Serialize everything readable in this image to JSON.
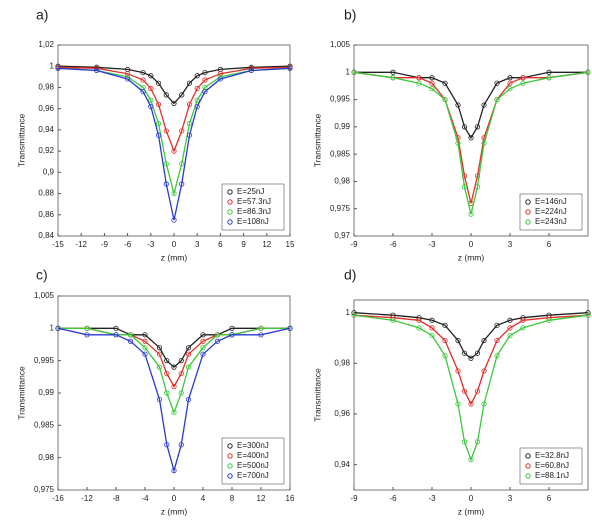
{
  "chart_data": [
    {
      "type": "line",
      "title": "a)",
      "x_label": "z (mm)",
      "y_label": "Transmittance",
      "x": [
        -15,
        -10,
        -6,
        -4,
        -3,
        -2,
        -1,
        0,
        1,
        2,
        3,
        4,
        6,
        10,
        15
      ],
      "xlim": [
        -15,
        15
      ],
      "xticks": [
        -15,
        -12,
        -9,
        -6,
        -3,
        0,
        3,
        6,
        9,
        12,
        15
      ],
      "ylim": [
        0.84,
        1.02
      ],
      "yticks": [
        {
          "value": 0.84,
          "label": "0,84"
        },
        {
          "value": 0.86,
          "label": "0,86"
        },
        {
          "value": 0.88,
          "label": "0,88"
        },
        {
          "value": 0.9,
          "label": "0,9"
        },
        {
          "value": 0.92,
          "label": "0,92"
        },
        {
          "value": 0.94,
          "label": "0,94"
        },
        {
          "value": 0.96,
          "label": "0,96"
        },
        {
          "value": 0.98,
          "label": "0,98"
        },
        1,
        {
          "value": 1.02,
          "label": "1,02"
        }
      ],
      "legend": "lower right",
      "series": [
        {
          "name": "E=25nJ",
          "color": "#222222",
          "values": [
            1,
            0.999,
            0.997,
            0.994,
            0.991,
            0.984,
            0.973,
            0.965,
            0.973,
            0.984,
            0.991,
            0.994,
            0.997,
            0.999,
            1
          ]
        },
        {
          "name": "E=57.3nJ",
          "color": "#e0302a",
          "values": [
            0.999,
            0.998,
            0.993,
            0.987,
            0.979,
            0.964,
            0.939,
            0.92,
            0.939,
            0.964,
            0.979,
            0.987,
            0.993,
            0.998,
            0.999
          ]
        },
        {
          "name": "E=86.3nJ",
          "color": "#3cc83c",
          "values": [
            0.998,
            0.996,
            0.99,
            0.98,
            0.968,
            0.946,
            0.908,
            0.88,
            0.908,
            0.946,
            0.968,
            0.98,
            0.99,
            0.996,
            0.998
          ]
        },
        {
          "name": "E=108nJ",
          "color": "#2a3ad0",
          "values": [
            0.998,
            0.996,
            0.988,
            0.976,
            0.962,
            0.935,
            0.889,
            0.855,
            0.889,
            0.935,
            0.962,
            0.976,
            0.988,
            0.996,
            0.998
          ]
        }
      ]
    },
    {
      "type": "line",
      "title": "b)",
      "x_label": "z (mm)",
      "y_label": "Transmittance",
      "x": [
        -9,
        -6,
        -4,
        -3,
        -2,
        -1,
        -0.5,
        0,
        0.5,
        1,
        2,
        3,
        4,
        6,
        9
      ],
      "xlim": [
        -9,
        9
      ],
      "xticks": [
        -9,
        -6,
        -3,
        0,
        3,
        6
      ],
      "ylim": [
        0.97,
        1.005
      ],
      "yticks": [
        {
          "value": 0.97,
          "label": "0,97"
        },
        {
          "value": 0.975,
          "label": "0,975"
        },
        {
          "value": 0.98,
          "label": "0,98"
        },
        {
          "value": 0.985,
          "label": "0,985"
        },
        {
          "value": 0.99,
          "label": "0,99"
        },
        {
          "value": 0.995,
          "label": "0,995"
        },
        1,
        {
          "value": 1.005,
          "label": "1,005"
        }
      ],
      "legend": "lower right",
      "series": [
        {
          "name": "E=146nJ",
          "color": "#222222",
          "values": [
            1,
            1,
            0.999,
            0.999,
            0.998,
            0.994,
            0.99,
            0.988,
            0.99,
            0.994,
            0.998,
            0.999,
            0.999,
            1,
            1
          ]
        },
        {
          "name": "E=224nJ",
          "color": "#e0302a",
          "values": [
            1,
            0.999,
            0.999,
            0.998,
            0.995,
            0.988,
            0.981,
            0.976,
            0.981,
            0.988,
            0.995,
            0.998,
            0.999,
            0.999,
            1
          ]
        },
        {
          "name": "E=243nJ",
          "color": "#3cc83c",
          "values": [
            1,
            0.999,
            0.998,
            0.997,
            0.995,
            0.987,
            0.979,
            0.974,
            0.979,
            0.987,
            0.995,
            0.997,
            0.998,
            0.999,
            1
          ]
        }
      ]
    },
    {
      "type": "line",
      "title": "c)",
      "x_label": "z (mm)",
      "y_label": "Transmittance",
      "x": [
        -16,
        -12,
        -8,
        -6,
        -4,
        -2,
        -1,
        0,
        1,
        2,
        4,
        6,
        8,
        12,
        16
      ],
      "xlim": [
        -16,
        16
      ],
      "xticks": [
        -16,
        -12,
        -8,
        -4,
        0,
        4,
        8,
        12,
        16
      ],
      "ylim": [
        0.975,
        1.005
      ],
      "yticks": [
        {
          "value": 0.975,
          "label": "0,975"
        },
        {
          "value": 0.98,
          "label": "0,98"
        },
        {
          "value": 0.985,
          "label": "0,985"
        },
        {
          "value": 0.99,
          "label": "0,99"
        },
        {
          "value": 0.995,
          "label": "0,995"
        },
        1,
        {
          "value": 1.005,
          "label": "1,005"
        }
      ],
      "legend": "lower right",
      "series": [
        {
          "name": "E=300nJ",
          "color": "#222222",
          "values": [
            1,
            1,
            1,
            0.999,
            0.999,
            0.997,
            0.995,
            0.994,
            0.995,
            0.997,
            0.999,
            0.999,
            1,
            1,
            1
          ]
        },
        {
          "name": "E=400nJ",
          "color": "#e0302a",
          "values": [
            1,
            1,
            0.999,
            0.999,
            0.998,
            0.996,
            0.993,
            0.991,
            0.993,
            0.996,
            0.998,
            0.999,
            0.999,
            1,
            1
          ]
        },
        {
          "name": "E=500nJ",
          "color": "#3cc83c",
          "values": [
            1,
            1,
            0.999,
            0.999,
            0.997,
            0.994,
            0.99,
            0.987,
            0.99,
            0.994,
            0.997,
            0.999,
            0.999,
            1,
            1
          ]
        },
        {
          "name": "E=700nJ",
          "color": "#2a3ad0",
          "values": [
            1,
            0.999,
            0.999,
            0.998,
            0.996,
            0.989,
            0.982,
            0.978,
            0.982,
            0.989,
            0.996,
            0.998,
            0.999,
            0.999,
            1
          ]
        }
      ]
    },
    {
      "type": "line",
      "title": "d)",
      "x_label": "z (mm)",
      "y_label": "Transmittance",
      "x": [
        -9,
        -6,
        -4,
        -3,
        -2,
        -1,
        -0.5,
        0,
        0.5,
        1,
        2,
        3,
        4,
        6,
        9
      ],
      "xlim": [
        -9,
        9
      ],
      "xticks": [
        -9,
        -6,
        -3,
        0,
        3,
        6
      ],
      "ylim": [
        0.93,
        1.005
      ],
      "yticks": [
        {
          "value": 0.94,
          "label": "0,94"
        },
        {
          "value": 0.96,
          "label": "0,96"
        },
        {
          "value": 0.98,
          "label": "0,98"
        },
        1
      ],
      "legend": "lower right",
      "series": [
        {
          "name": "E=32.8nJ",
          "color": "#222222",
          "values": [
            1,
            0.999,
            0.998,
            0.997,
            0.995,
            0.989,
            0.984,
            0.982,
            0.984,
            0.989,
            0.995,
            0.997,
            0.998,
            0.999,
            1
          ]
        },
        {
          "name": "E=60.8nJ",
          "color": "#e0302a",
          "values": [
            0.999,
            0.998,
            0.997,
            0.994,
            0.989,
            0.977,
            0.969,
            0.964,
            0.969,
            0.977,
            0.989,
            0.994,
            0.997,
            0.998,
            0.999
          ]
        },
        {
          "name": "E=88.1nJ",
          "color": "#3cc83c",
          "values": [
            0.999,
            0.997,
            0.994,
            0.991,
            0.983,
            0.964,
            0.949,
            0.942,
            0.949,
            0.964,
            0.983,
            0.991,
            0.994,
            0.997,
            0.999
          ]
        }
      ]
    }
  ]
}
